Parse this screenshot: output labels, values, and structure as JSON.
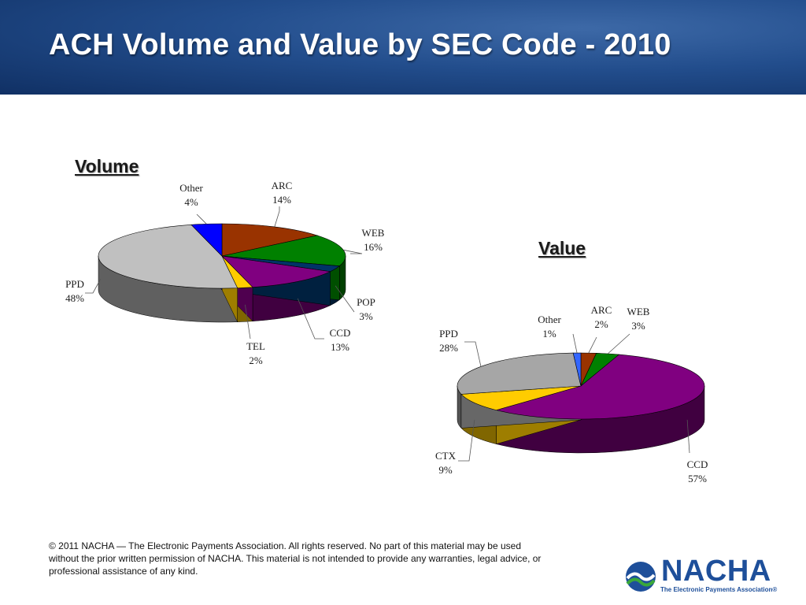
{
  "slide": {
    "title": "ACH Volume and Value by SEC Code - 2010",
    "footer": "© 2011 NACHA — The Electronic Payments Association.  All rights reserved. No part of this material may be used without the prior written permission of NACHA. This material is not intended to provide any warranties, legal advice, or professional assistance of any kind.",
    "logo": {
      "name": "NACHA",
      "tagline": "The Electronic Payments Association®",
      "colors": {
        "primary": "#1e4f9a",
        "accent": "#3aa83a"
      }
    }
  },
  "chart_data": [
    {
      "type": "pie",
      "title": "Volume",
      "unit": "%",
      "slices": [
        {
          "label": "ARC",
          "value": 14,
          "color": "#993300"
        },
        {
          "label": "WEB",
          "value": 16,
          "color": "#008000"
        },
        {
          "label": "POP",
          "value": 3,
          "color": "#003366"
        },
        {
          "label": "CCD",
          "value": 13,
          "color": "#800080"
        },
        {
          "label": "TEL",
          "value": 2,
          "color": "#ffcc00"
        },
        {
          "label": "PPD",
          "value": 48,
          "color": "#c0c0c0"
        },
        {
          "label": "Other",
          "value": 4,
          "color": "#0000ff"
        }
      ]
    },
    {
      "type": "pie",
      "title": "Value",
      "unit": "%",
      "slices": [
        {
          "label": "ARC",
          "value": 2,
          "color": "#993300"
        },
        {
          "label": "WEB",
          "value": 3,
          "color": "#008000"
        },
        {
          "label": "CCD",
          "value": 57,
          "color": "#800080"
        },
        {
          "label": "CTX",
          "value": 9,
          "color": "#ffcc00"
        },
        {
          "label": "PPD",
          "value": 28,
          "color": "#a6a6a6"
        },
        {
          "label": "Other",
          "value": 1,
          "color": "#3366ff"
        }
      ]
    }
  ]
}
